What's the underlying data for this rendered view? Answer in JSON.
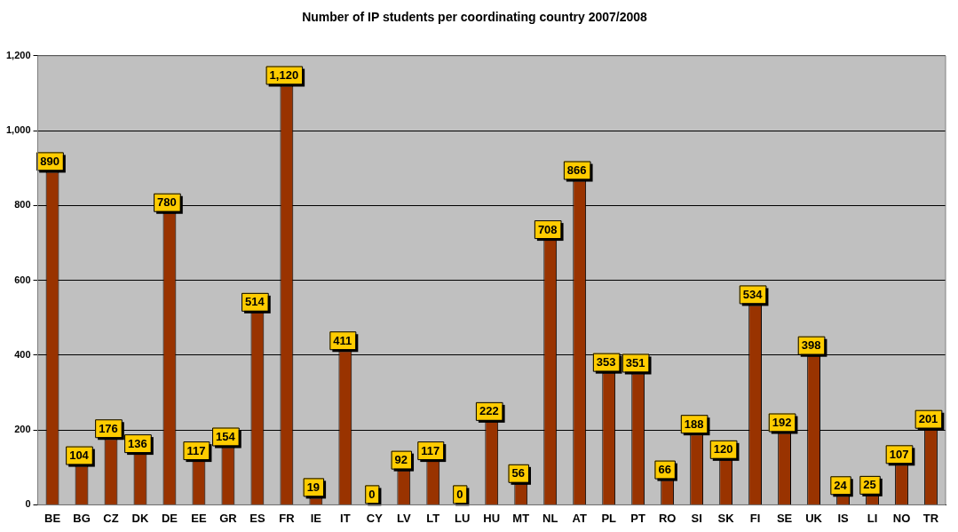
{
  "chart_data": {
    "type": "bar",
    "title": "Number of IP students per coordinating country 2007/2008",
    "categories": [
      "BE",
      "BG",
      "CZ",
      "DK",
      "DE",
      "EE",
      "GR",
      "ES",
      "FR",
      "IE",
      "IT",
      "CY",
      "LV",
      "LT",
      "LU",
      "HU",
      "MT",
      "NL",
      "AT",
      "PL",
      "PT",
      "RO",
      "SI",
      "SK",
      "FI",
      "SE",
      "UK",
      "IS",
      "LI",
      "NO",
      "TR"
    ],
    "values": [
      890,
      104,
      176,
      136,
      780,
      117,
      154,
      514,
      1120,
      19,
      411,
      0,
      92,
      117,
      0,
      222,
      56,
      708,
      866,
      353,
      351,
      66,
      188,
      120,
      534,
      192,
      398,
      24,
      25,
      107,
      201
    ],
    "value_labels": [
      "890",
      "104",
      "176",
      "136",
      "780",
      "117",
      "154",
      "514",
      "1,120",
      "19",
      "411",
      "0",
      "92",
      "117",
      "0",
      "222",
      "56",
      "708",
      "866",
      "353",
      "351",
      "66",
      "188",
      "120",
      "534",
      "192",
      "398",
      "24",
      "25",
      "107",
      "201"
    ],
    "color": "#993300",
    "ylim": [
      0,
      1200
    ],
    "yticks": [
      0,
      200,
      400,
      600,
      800,
      {
        "value": 1000,
        "label": "1,000"
      },
      {
        "value": 1200,
        "label": "1,200"
      }
    ],
    "grid": "y",
    "legend": false
  }
}
